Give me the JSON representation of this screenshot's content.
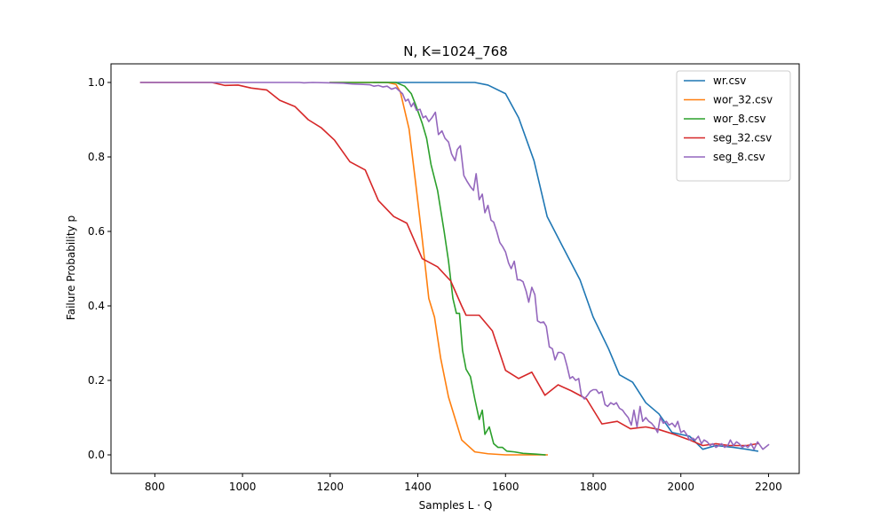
{
  "chart_data": {
    "type": "line",
    "title": "N, K=1024_768",
    "xlabel": "Samples L · Q",
    "ylabel": "Failure Probability p",
    "xlim": [
      700,
      2270
    ],
    "ylim": [
      -0.05,
      1.05
    ],
    "xticks": [
      "800",
      "1000",
      "1200",
      "1400",
      "1600",
      "1800",
      "2000",
      "2200"
    ],
    "yticks": [
      "0.0",
      "0.2",
      "0.4",
      "0.6",
      "0.8",
      "1.0"
    ],
    "grid": false,
    "legend_position": "top-right",
    "series": [
      {
        "name": "wr.csv",
        "color": "#1f77b4",
        "points": [
          [
            1300,
            1.0
          ],
          [
            1400,
            1.0
          ],
          [
            1500,
            1.0
          ],
          [
            1530,
            1.0
          ],
          [
            1560,
            0.993
          ],
          [
            1600,
            0.97
          ],
          [
            1630,
            0.905
          ],
          [
            1665,
            0.79
          ],
          [
            1695,
            0.64
          ],
          [
            1730,
            0.56
          ],
          [
            1770,
            0.47
          ],
          [
            1800,
            0.37
          ],
          [
            1835,
            0.285
          ],
          [
            1860,
            0.215
          ],
          [
            1890,
            0.195
          ],
          [
            1920,
            0.14
          ],
          [
            1950,
            0.11
          ],
          [
            1980,
            0.06
          ],
          [
            2020,
            0.05
          ],
          [
            2050,
            0.015
          ],
          [
            2080,
            0.025
          ],
          [
            2120,
            0.02
          ],
          [
            2150,
            0.015
          ],
          [
            2175,
            0.01
          ]
        ]
      },
      {
        "name": "wor_32.csv",
        "color": "#ff7f0e",
        "points": [
          [
            1200,
            1.0
          ],
          [
            1300,
            1.0
          ],
          [
            1330,
            1.0
          ],
          [
            1350,
            0.995
          ],
          [
            1360,
            0.975
          ],
          [
            1380,
            0.875
          ],
          [
            1395,
            0.73
          ],
          [
            1410,
            0.58
          ],
          [
            1425,
            0.42
          ],
          [
            1438,
            0.37
          ],
          [
            1452,
            0.26
          ],
          [
            1470,
            0.155
          ],
          [
            1500,
            0.04
          ],
          [
            1530,
            0.008
          ],
          [
            1560,
            0.003
          ],
          [
            1600,
            0.0
          ],
          [
            1650,
            0.0
          ],
          [
            1695,
            0.0
          ]
        ]
      },
      {
        "name": "wor_8.csv",
        "color": "#2ca02c",
        "points": [
          [
            1200,
            1.0
          ],
          [
            1300,
            1.0
          ],
          [
            1350,
            1.0
          ],
          [
            1370,
            0.99
          ],
          [
            1385,
            0.97
          ],
          [
            1395,
            0.94
          ],
          [
            1410,
            0.89
          ],
          [
            1420,
            0.85
          ],
          [
            1430,
            0.78
          ],
          [
            1445,
            0.71
          ],
          [
            1460,
            0.6
          ],
          [
            1470,
            0.52
          ],
          [
            1480,
            0.42
          ],
          [
            1488,
            0.38
          ],
          [
            1495,
            0.38
          ],
          [
            1502,
            0.28
          ],
          [
            1510,
            0.23
          ],
          [
            1520,
            0.21
          ],
          [
            1530,
            0.15
          ],
          [
            1540,
            0.095
          ],
          [
            1547,
            0.12
          ],
          [
            1553,
            0.055
          ],
          [
            1563,
            0.075
          ],
          [
            1573,
            0.03
          ],
          [
            1583,
            0.02
          ],
          [
            1593,
            0.02
          ],
          [
            1603,
            0.01
          ],
          [
            1620,
            0.008
          ],
          [
            1640,
            0.004
          ],
          [
            1670,
            0.002
          ],
          [
            1690,
            0.0
          ]
        ]
      },
      {
        "name": "seg_32.csv",
        "color": "#d62728",
        "points": [
          [
            768,
            1.0
          ],
          [
            900,
            1.0
          ],
          [
            930,
            1.0
          ],
          [
            960,
            0.992
          ],
          [
            990,
            0.993
          ],
          [
            1020,
            0.985
          ],
          [
            1055,
            0.98
          ],
          [
            1085,
            0.952
          ],
          [
            1120,
            0.935
          ],
          [
            1150,
            0.9
          ],
          [
            1180,
            0.878
          ],
          [
            1210,
            0.845
          ],
          [
            1245,
            0.787
          ],
          [
            1280,
            0.765
          ],
          [
            1310,
            0.683
          ],
          [
            1345,
            0.64
          ],
          [
            1375,
            0.622
          ],
          [
            1410,
            0.527
          ],
          [
            1445,
            0.505
          ],
          [
            1475,
            0.467
          ],
          [
            1500,
            0.4
          ],
          [
            1510,
            0.375
          ],
          [
            1540,
            0.375
          ],
          [
            1570,
            0.333
          ],
          [
            1600,
            0.227
          ],
          [
            1630,
            0.205
          ],
          [
            1660,
            0.222
          ],
          [
            1690,
            0.16
          ],
          [
            1720,
            0.188
          ],
          [
            1750,
            0.172
          ],
          [
            1785,
            0.15
          ],
          [
            1820,
            0.083
          ],
          [
            1855,
            0.09
          ],
          [
            1885,
            0.07
          ],
          [
            1920,
            0.075
          ],
          [
            1950,
            0.068
          ],
          [
            1985,
            0.055
          ],
          [
            2020,
            0.04
          ],
          [
            2050,
            0.025
          ],
          [
            2080,
            0.03
          ],
          [
            2110,
            0.025
          ],
          [
            2150,
            0.025
          ],
          [
            2175,
            0.03
          ]
        ]
      },
      {
        "name": "seg_8.csv",
        "color": "#9467bd",
        "points": [
          [
            768,
            1.0
          ],
          [
            1000,
            1.0
          ],
          [
            1100,
            1.0
          ],
          [
            1130,
            1.0
          ],
          [
            1140,
            0.999
          ],
          [
            1160,
            1.0
          ],
          [
            1200,
            0.999
          ],
          [
            1230,
            0.998
          ],
          [
            1250,
            0.996
          ],
          [
            1270,
            0.995
          ],
          [
            1290,
            0.994
          ],
          [
            1300,
            0.99
          ],
          [
            1310,
            0.992
          ],
          [
            1320,
            0.988
          ],
          [
            1330,
            0.99
          ],
          [
            1340,
            0.982
          ],
          [
            1350,
            0.986
          ],
          [
            1360,
            0.975
          ],
          [
            1365,
            0.97
          ],
          [
            1372,
            0.95
          ],
          [
            1378,
            0.955
          ],
          [
            1385,
            0.935
          ],
          [
            1390,
            0.945
          ],
          [
            1397,
            0.925
          ],
          [
            1405,
            0.928
          ],
          [
            1412,
            0.905
          ],
          [
            1418,
            0.91
          ],
          [
            1425,
            0.895
          ],
          [
            1432,
            0.905
          ],
          [
            1440,
            0.92
          ],
          [
            1447,
            0.86
          ],
          [
            1455,
            0.87
          ],
          [
            1462,
            0.85
          ],
          [
            1470,
            0.84
          ],
          [
            1477,
            0.808
          ],
          [
            1485,
            0.79
          ],
          [
            1490,
            0.82
          ],
          [
            1497,
            0.83
          ],
          [
            1505,
            0.75
          ],
          [
            1512,
            0.735
          ],
          [
            1520,
            0.72
          ],
          [
            1527,
            0.71
          ],
          [
            1533,
            0.755
          ],
          [
            1540,
            0.685
          ],
          [
            1547,
            0.7
          ],
          [
            1553,
            0.65
          ],
          [
            1560,
            0.67
          ],
          [
            1567,
            0.63
          ],
          [
            1573,
            0.625
          ],
          [
            1580,
            0.6
          ],
          [
            1587,
            0.57
          ],
          [
            1593,
            0.56
          ],
          [
            1600,
            0.545
          ],
          [
            1607,
            0.515
          ],
          [
            1613,
            0.5
          ],
          [
            1620,
            0.52
          ],
          [
            1627,
            0.47
          ],
          [
            1633,
            0.47
          ],
          [
            1640,
            0.465
          ],
          [
            1647,
            0.44
          ],
          [
            1653,
            0.41
          ],
          [
            1660,
            0.45
          ],
          [
            1667,
            0.43
          ],
          [
            1673,
            0.36
          ],
          [
            1680,
            0.355
          ],
          [
            1687,
            0.357
          ],
          [
            1693,
            0.345
          ],
          [
            1700,
            0.29
          ],
          [
            1707,
            0.285
          ],
          [
            1713,
            0.255
          ],
          [
            1720,
            0.275
          ],
          [
            1727,
            0.275
          ],
          [
            1733,
            0.27
          ],
          [
            1740,
            0.24
          ],
          [
            1747,
            0.205
          ],
          [
            1753,
            0.21
          ],
          [
            1760,
            0.2
          ],
          [
            1767,
            0.205
          ],
          [
            1773,
            0.16
          ],
          [
            1780,
            0.15
          ],
          [
            1787,
            0.16
          ],
          [
            1793,
            0.17
          ],
          [
            1800,
            0.175
          ],
          [
            1807,
            0.175
          ],
          [
            1813,
            0.165
          ],
          [
            1820,
            0.17
          ],
          [
            1827,
            0.135
          ],
          [
            1833,
            0.13
          ],
          [
            1840,
            0.14
          ],
          [
            1847,
            0.135
          ],
          [
            1853,
            0.14
          ],
          [
            1860,
            0.125
          ],
          [
            1867,
            0.12
          ],
          [
            1873,
            0.11
          ],
          [
            1880,
            0.1
          ],
          [
            1887,
            0.08
          ],
          [
            1893,
            0.12
          ],
          [
            1900,
            0.075
          ],
          [
            1907,
            0.13
          ],
          [
            1913,
            0.09
          ],
          [
            1920,
            0.1
          ],
          [
            1927,
            0.09
          ],
          [
            1933,
            0.085
          ],
          [
            1940,
            0.075
          ],
          [
            1947,
            0.06
          ],
          [
            1953,
            0.1
          ],
          [
            1960,
            0.085
          ],
          [
            1967,
            0.09
          ],
          [
            1973,
            0.08
          ],
          [
            1980,
            0.085
          ],
          [
            1987,
            0.075
          ],
          [
            1993,
            0.09
          ],
          [
            2000,
            0.06
          ],
          [
            2007,
            0.065
          ],
          [
            2013,
            0.055
          ],
          [
            2020,
            0.04
          ],
          [
            2027,
            0.045
          ],
          [
            2033,
            0.04
          ],
          [
            2040,
            0.05
          ],
          [
            2047,
            0.03
          ],
          [
            2053,
            0.04
          ],
          [
            2060,
            0.035
          ],
          [
            2067,
            0.025
          ],
          [
            2073,
            0.03
          ],
          [
            2080,
            0.02
          ],
          [
            2087,
            0.025
          ],
          [
            2093,
            0.03
          ],
          [
            2100,
            0.02
          ],
          [
            2107,
            0.025
          ],
          [
            2113,
            0.04
          ],
          [
            2120,
            0.025
          ],
          [
            2127,
            0.035
          ],
          [
            2133,
            0.03
          ],
          [
            2140,
            0.02
          ],
          [
            2147,
            0.025
          ],
          [
            2153,
            0.02
          ],
          [
            2160,
            0.03
          ],
          [
            2167,
            0.015
          ],
          [
            2175,
            0.035
          ],
          [
            2187,
            0.015
          ],
          [
            2200,
            0.027
          ]
        ]
      }
    ]
  }
}
